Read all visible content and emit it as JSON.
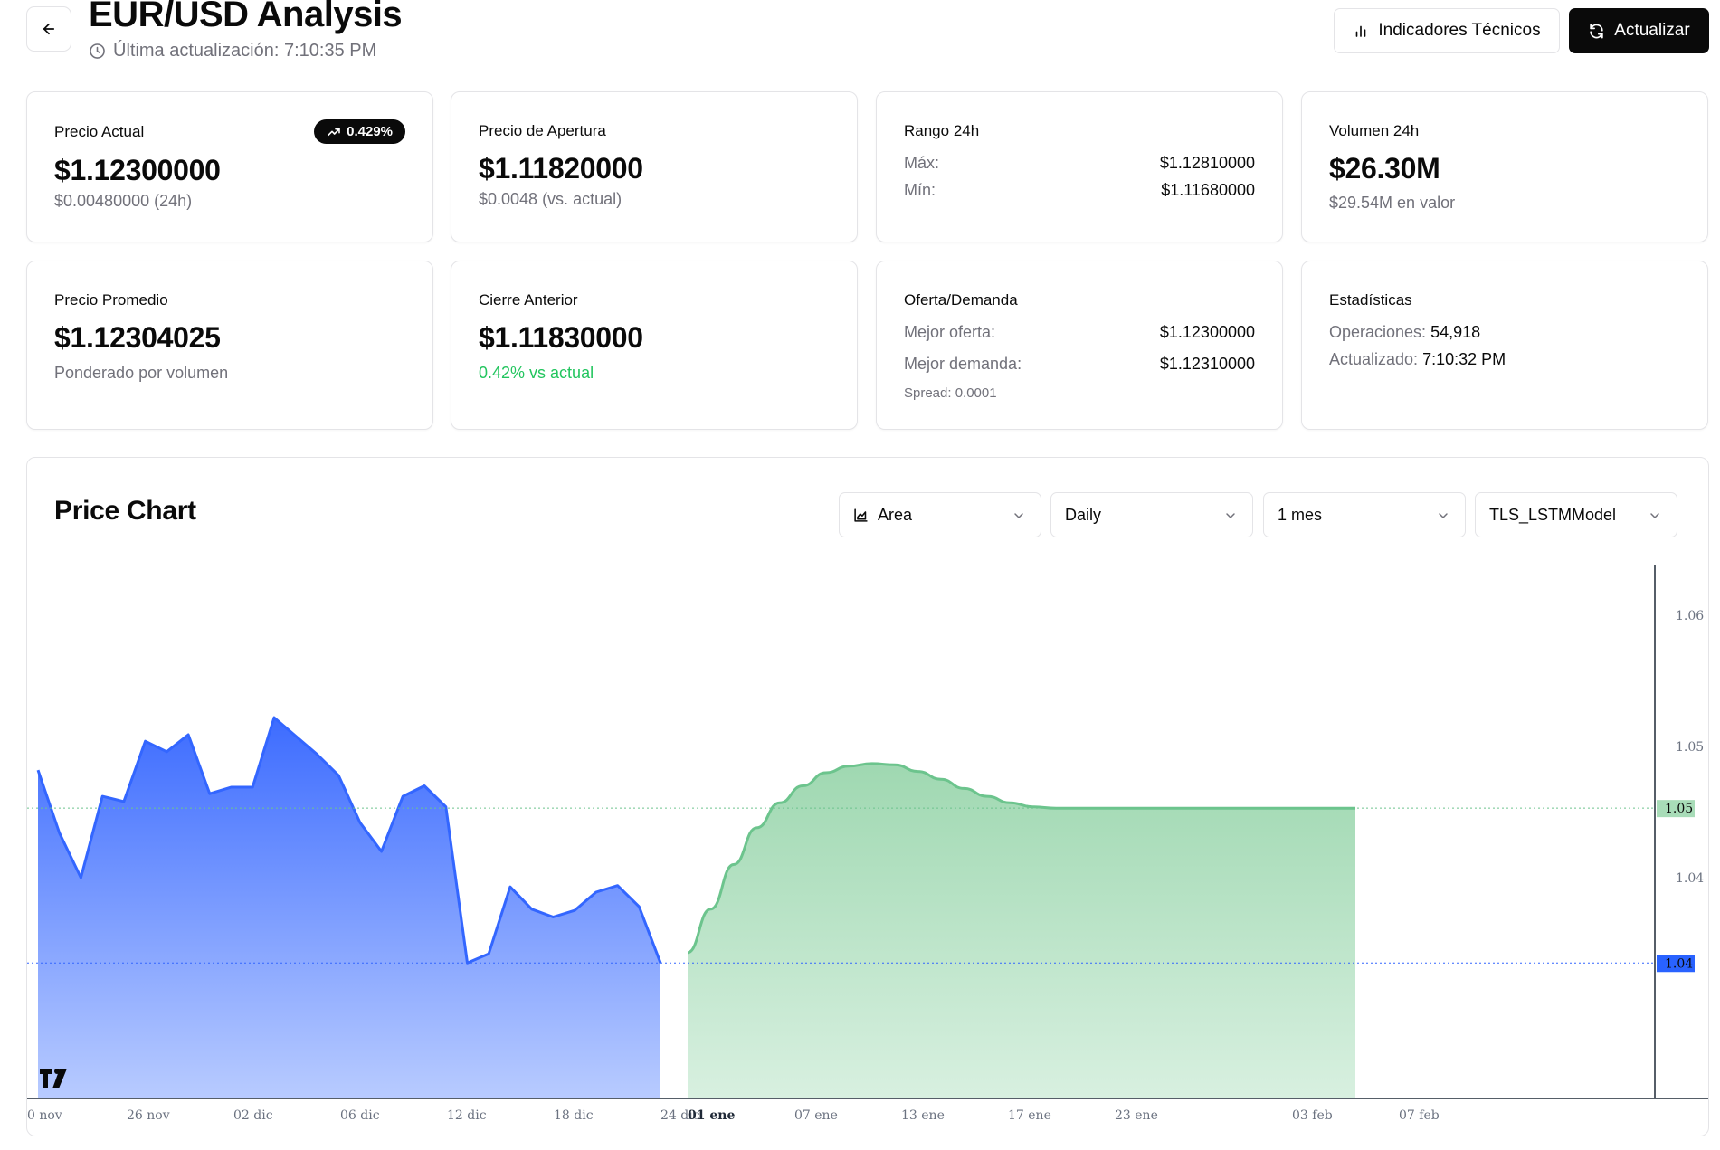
{
  "header": {
    "title": "EUR/USD Analysis",
    "last_update": "Última actualización: 7:10:35 PM",
    "indicators_label": "Indicadores Técnicos",
    "refresh_label": "Actualizar"
  },
  "cards": {
    "current_price": {
      "label": "Precio Actual",
      "value": "$1.12300000",
      "sub": "$0.00480000 (24h)",
      "badge": "0.429%"
    },
    "open_price": {
      "label": "Precio de Apertura",
      "value": "$1.11820000",
      "sub": "$0.0048 (vs. actual)"
    },
    "range": {
      "label": "Rango 24h",
      "max_label": "Máx:",
      "max_value": "$1.12810000",
      "min_label": "Mín:",
      "min_value": "$1.11680000"
    },
    "volume": {
      "label": "Volumen 24h",
      "value": "$26.30M",
      "sub": "$29.54M en valor"
    },
    "avg_price": {
      "label": "Precio Promedio",
      "value": "$1.12304025",
      "sub": "Ponderado por volumen"
    },
    "prev_close": {
      "label": "Cierre Anterior",
      "value": "$1.11830000",
      "sub": "0.42% vs actual"
    },
    "bid_ask": {
      "label": "Oferta/Demanda",
      "bid_label": "Mejor oferta:",
      "bid_value": "$1.12300000",
      "ask_label": "Mejor demanda:",
      "ask_value": "$1.12310000",
      "spread": "Spread: 0.0001"
    },
    "stats": {
      "label": "Estadísticas",
      "ops_label": "Operaciones:",
      "ops_value": "54,918",
      "updated_label": "Actualizado:",
      "updated_value": "7:10:32 PM"
    }
  },
  "chart_panel": {
    "title": "Price Chart",
    "selects": {
      "type": "Area",
      "interval": "Daily",
      "range": "1 mes",
      "model": "TLS_LSTMModel"
    }
  },
  "colors": {
    "historical": "#3366ff",
    "forecast": "#6cc48d",
    "last_price_tag": "#2962ff",
    "forecast_price_tag": "#a8dcb8"
  },
  "chart_data": {
    "type": "area",
    "y_ticks": [
      1.06,
      1.05,
      1.04
    ],
    "price_labels": {
      "historical_last": "1.04",
      "forecast_last": "1.05"
    },
    "x_ticks": [
      "0 nov",
      "26 nov",
      "02 dic",
      "06 dic",
      "12 dic",
      "18 dic",
      "24 dic",
      "01 ene",
      "07 ene",
      "13 ene",
      "17 ene",
      "23 ene",
      "03 feb",
      "07 feb"
    ],
    "series": [
      {
        "values": [
          1.0482,
          1.0434,
          1.04,
          1.0462,
          1.0458,
          1.0504,
          1.0496,
          1.0509,
          1.0464,
          1.0469,
          1.0469,
          1.0522,
          1.0508,
          1.0494,
          1.0478,
          1.0442,
          1.042,
          1.0462,
          1.047,
          1.0454,
          1.0335,
          1.0342,
          1.0393,
          1.0376,
          1.037,
          1.0375,
          1.0389,
          1.0394,
          1.0378,
          1.0335
        ]
      },
      {
        "values": [
          1.0343,
          1.0376,
          1.041,
          1.0438,
          1.0457,
          1.047,
          1.048,
          1.0485,
          1.0487,
          1.0486,
          1.0481,
          1.0475,
          1.0468,
          1.0462,
          1.0457,
          1.0454,
          1.0453,
          1.0453,
          1.0453,
          1.0453,
          1.0453,
          1.0453,
          1.0453,
          1.0453,
          1.0453,
          1.0453,
          1.0453,
          1.0453,
          1.0453,
          1.0453
        ]
      }
    ]
  }
}
